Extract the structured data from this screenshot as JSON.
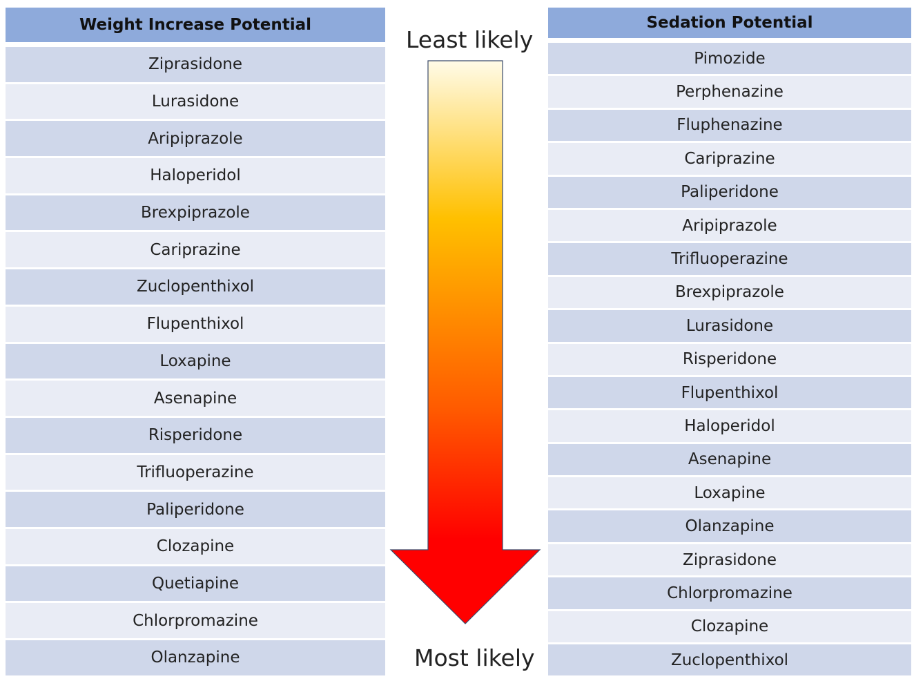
{
  "weight_table": {
    "title": "Weight Increase Potential",
    "items": [
      "Ziprasidone",
      "Lurasidone",
      "Aripiprazole",
      "Haloperidol",
      "Brexpiprazole",
      "Cariprazine",
      "Zuclopenthixol",
      "Flupenthixol",
      "Loxapine",
      "Asenapine",
      "Risperidone",
      "Trifluoperazine",
      "Paliperidone",
      "Clozapine",
      "Quetiapine",
      "Chlorpromazine",
      "Olanzapine"
    ]
  },
  "sedation_table": {
    "title": "Sedation Potential",
    "items": [
      "Pimozide",
      "Perphenazine",
      "Fluphenazine",
      "Cariprazine",
      "Paliperidone",
      "Aripiprazole",
      "Trifluoperazine",
      "Brexpiprazole",
      "Lurasidone",
      "Risperidone",
      "Flupenthixol",
      "Haloperidol",
      "Asenapine",
      "Loxapine",
      "Olanzapine",
      "Ziprasidone",
      "Chlorpromazine",
      "Clozapine",
      "Zuclopenthixol"
    ]
  },
  "scale": {
    "top_label": "Least likely",
    "bottom_label": "Most likely"
  },
  "colors": {
    "header": "#8eaadb",
    "row_dark": "#cfd7ea",
    "row_light": "#e9ecf5",
    "arrow_start": "#fffbe8",
    "arrow_mid": "#ffc000",
    "arrow_end": "#ff0000"
  }
}
